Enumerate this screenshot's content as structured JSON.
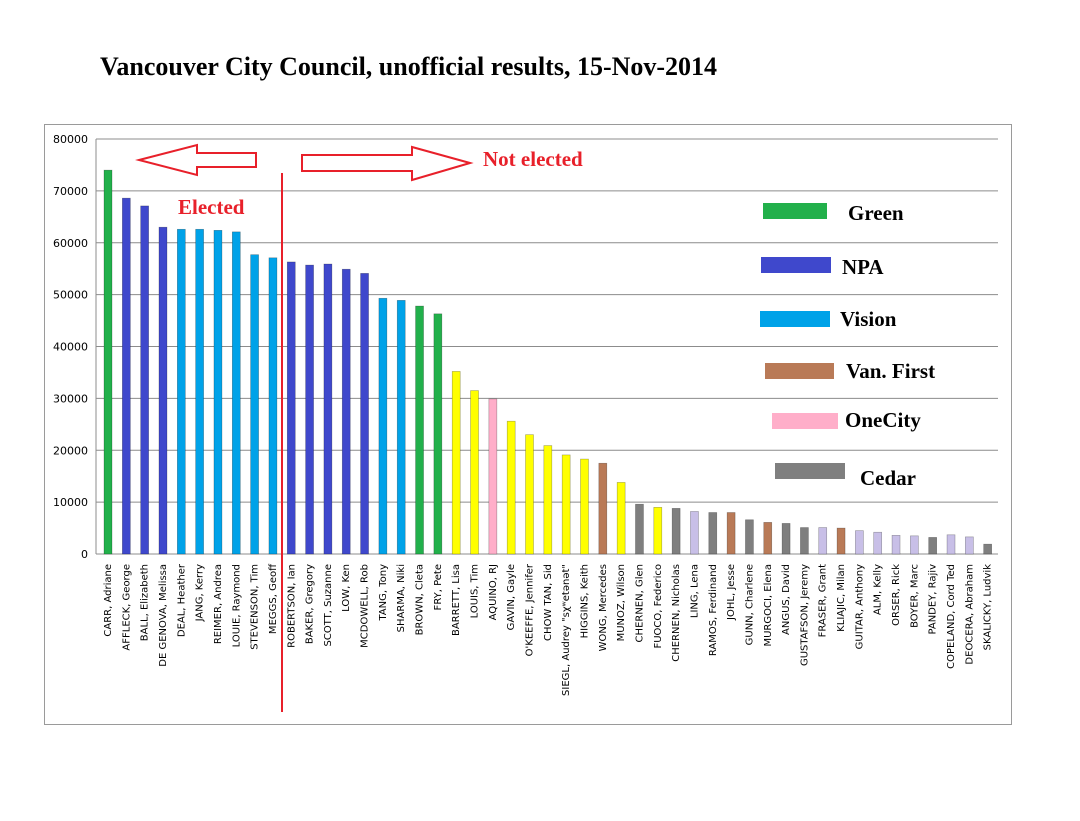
{
  "title": "Vancouver City Council, unofficial results, 15-Nov-2014",
  "chart_data": {
    "type": "bar",
    "title": "Vancouver City Council, unofficial results, 15-Nov-2014",
    "xlabel": "",
    "ylabel": "",
    "ylim": [
      0,
      80000
    ],
    "yticks": [
      0,
      10000,
      20000,
      30000,
      40000,
      50000,
      60000,
      70000,
      80000
    ],
    "grid": true,
    "legend_position": "right",
    "categories": [
      "CARR, Adriane",
      "AFFLECK, George",
      "BALL, Elizabeth",
      "DE GENOVA, Melissa",
      "DEAL, Heather",
      "JANG, Kerry",
      "REIMER, Andrea",
      "LOUIE, Raymond",
      "STEVENSON, Tim",
      "MEGGS, Geoff",
      "ROBERTSON, Ian",
      "BAKER, Gregory",
      "SCOTT, Suzanne",
      "LOW, Ken",
      "MCDOWELL, Rob",
      "TANG, Tony",
      "SHARMA, Niki",
      "BROWN, Cleta",
      "FRY, Pete",
      "BARRETT, Lisa",
      "LOUIS, Tim",
      "AQUINO, RJ",
      "GAVIN, Gayle",
      "O'KEEFFE, Jennifer",
      "CHOW TAN, Sid",
      "SIEGL, Audrey \"sχʷetənət\"",
      "HIGGINS, Keith",
      "WONG, Mercedes",
      "MUNOZ, Wilson",
      "CHERNEN, Glen",
      "FUOCO, Federico",
      "CHERNEN, Nicholas",
      "LING, Lena",
      "RAMOS, Ferdinand",
      "JOHL, Jesse",
      "GUNN, Charlene",
      "MURGOCI, Elena",
      "ANGUS, David",
      "GUSTAFSON, Jeremy",
      "FRASER, Grant",
      "KLIAJIC, Milan",
      "GUITAR, Anthony",
      "ALM, Kelly",
      "ORSER, Rick",
      "BOYER, Marc",
      "PANDEY, Rajiv",
      "COPELAND, Cord Ted",
      "DEOCERA, Abraham",
      "SKALICKY, Ludvik"
    ],
    "values": [
      74000,
      68600,
      67100,
      63000,
      62600,
      62600,
      62400,
      62100,
      57700,
      57100,
      56300,
      55700,
      55900,
      54900,
      54100,
      49300,
      48900,
      47800,
      46300,
      35200,
      31500,
      29900,
      25600,
      23000,
      20900,
      19100,
      18300,
      17500,
      13800,
      9600,
      9000,
      8800,
      8200,
      8000,
      8000,
      6600,
      6100,
      5900,
      5100,
      5100,
      5000,
      4500,
      4200,
      3600,
      3500,
      3200,
      3700,
      3300,
      1900
    ],
    "colors": [
      "#22b04b",
      "#3f48cc",
      "#3f48cc",
      "#3f48cc",
      "#00a2e8",
      "#00a2e8",
      "#00a2e8",
      "#00a2e8",
      "#00a2e8",
      "#00a2e8",
      "#3f48cc",
      "#3f48cc",
      "#3f48cc",
      "#3f48cc",
      "#3f48cc",
      "#00a2e8",
      "#00a2e8",
      "#22b04b",
      "#22b04b",
      "#ffff00",
      "#ffff00",
      "#ffaec9",
      "#ffff00",
      "#ffff00",
      "#ffff00",
      "#ffff00",
      "#ffff00",
      "#b97a57",
      "#ffff00",
      "#7f7f7f",
      "#ffff00",
      "#7f7f7f",
      "#c8bfe7",
      "#7f7f7f",
      "#b97a57",
      "#7f7f7f",
      "#b97a57",
      "#7f7f7f",
      "#7f7f7f",
      "#c8bfe7",
      "#b97a57",
      "#c8bfe7",
      "#c8bfe7",
      "#c8bfe7",
      "#c8bfe7",
      "#7f7f7f",
      "#c8bfe7",
      "#c8bfe7",
      "#7f7f7f"
    ],
    "legend": [
      {
        "label": "Green",
        "color": "#22b04b"
      },
      {
        "label": "NPA",
        "color": "#3f48cc"
      },
      {
        "label": "Vision",
        "color": "#00a2e8"
      },
      {
        "label": "Van. First",
        "color": "#b97a57"
      },
      {
        "label": "OneCity",
        "color": "#ffaec9"
      },
      {
        "label": "Cedar",
        "color": "#7f7f7f"
      }
    ],
    "annotations": {
      "elected": "Elected",
      "not_elected": "Not elected"
    }
  }
}
